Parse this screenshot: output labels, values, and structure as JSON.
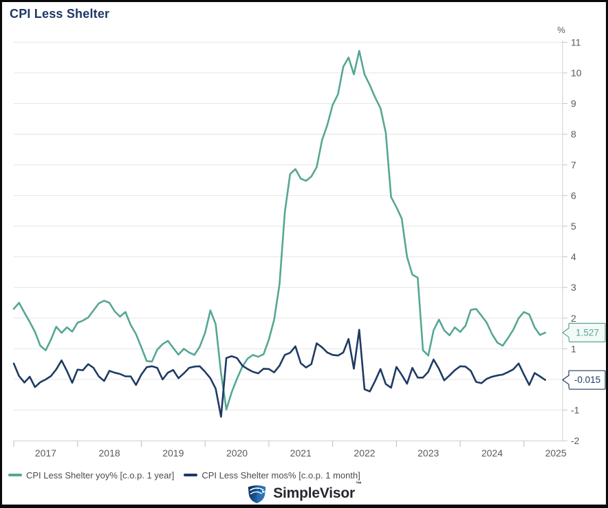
{
  "window": {
    "title": "CPI Less Shelter"
  },
  "footer": {
    "brand": "SimpleVisor",
    "trademark": "™"
  },
  "chart_data": {
    "type": "line",
    "title": "CPI Less Shelter",
    "x_start": "2017-01",
    "x_end": "2025-05",
    "x_frequency": "monthly",
    "x_tick_years": [
      "2017",
      "2018",
      "2019",
      "2020",
      "2021",
      "2022",
      "2023",
      "2024",
      "2025"
    ],
    "y_unit": "%",
    "y_ticks": [
      -2,
      -1,
      0,
      1,
      2,
      3,
      4,
      5,
      6,
      7,
      8,
      9,
      10,
      11
    ],
    "ylim": [
      -2,
      11
    ],
    "grid": true,
    "legend_position": "bottom",
    "series": [
      {
        "name": "CPI Less Shelter yoy% [c.o.p. 1 year]",
        "color": "#56a694",
        "callout_bg": "#f3faf7",
        "last_value_label": "1.527",
        "data_name": "yoy-line",
        "values": [
          2.3,
          2.5,
          2.18,
          1.88,
          1.55,
          1.1,
          0.95,
          1.3,
          1.72,
          1.52,
          1.7,
          1.56,
          1.85,
          1.92,
          2.02,
          2.25,
          2.48,
          2.57,
          2.5,
          2.22,
          2.05,
          2.2,
          1.78,
          1.48,
          1.05,
          0.6,
          0.58,
          0.97,
          1.15,
          1.26,
          1.03,
          0.81,
          1.0,
          0.88,
          0.8,
          1.07,
          1.52,
          2.25,
          1.8,
          0.2,
          -0.98,
          -0.42,
          0.02,
          0.42,
          0.68,
          0.8,
          0.74,
          0.82,
          1.3,
          1.95,
          3.1,
          5.45,
          6.7,
          6.86,
          6.55,
          6.48,
          6.62,
          6.92,
          7.8,
          8.3,
          8.95,
          9.3,
          10.2,
          10.5,
          9.95,
          10.72,
          9.95,
          9.6,
          9.2,
          8.85,
          8.05,
          5.95,
          5.62,
          5.25,
          4.0,
          3.42,
          3.32,
          0.95,
          0.78,
          1.6,
          1.95,
          1.6,
          1.44,
          1.7,
          1.55,
          1.75,
          2.27,
          2.3,
          2.08,
          1.85,
          1.48,
          1.2,
          1.1,
          1.35,
          1.62,
          2.0,
          2.2,
          2.12,
          1.7,
          1.45,
          1.527
        ]
      },
      {
        "name": "CPI Less Shelter mos% [c.o.p. 1 month]",
        "color": "#1e3a63",
        "callout_bg": "#ffffff",
        "last_value_label": "-0.015",
        "data_name": "mom-line",
        "values": [
          0.52,
          0.11,
          -0.1,
          0.09,
          -0.25,
          -0.09,
          0.0,
          0.11,
          0.33,
          0.62,
          0.28,
          -0.11,
          0.32,
          0.3,
          0.5,
          0.38,
          0.1,
          -0.05,
          0.28,
          0.22,
          0.18,
          0.1,
          0.1,
          -0.18,
          0.16,
          0.4,
          0.43,
          0.38,
          0.0,
          0.22,
          0.31,
          0.04,
          0.2,
          0.38,
          0.42,
          0.43,
          0.25,
          0.04,
          -0.3,
          -1.22,
          0.7,
          0.76,
          0.7,
          0.45,
          0.34,
          0.25,
          0.2,
          0.35,
          0.34,
          0.23,
          0.45,
          0.8,
          0.87,
          1.08,
          0.53,
          0.39,
          0.5,
          1.18,
          1.05,
          0.88,
          0.8,
          0.78,
          0.88,
          1.32,
          0.35,
          1.62,
          -0.32,
          -0.39,
          -0.05,
          0.34,
          -0.15,
          -0.27,
          0.41,
          0.15,
          -0.14,
          0.38,
          0.06,
          0.06,
          0.25,
          0.65,
          0.35,
          -0.03,
          0.13,
          0.3,
          0.43,
          0.42,
          0.28,
          -0.08,
          -0.12,
          0.02,
          0.09,
          0.13,
          0.16,
          0.24,
          0.33,
          0.52,
          0.16,
          -0.18,
          0.21,
          0.1,
          -0.015
        ]
      }
    ]
  }
}
